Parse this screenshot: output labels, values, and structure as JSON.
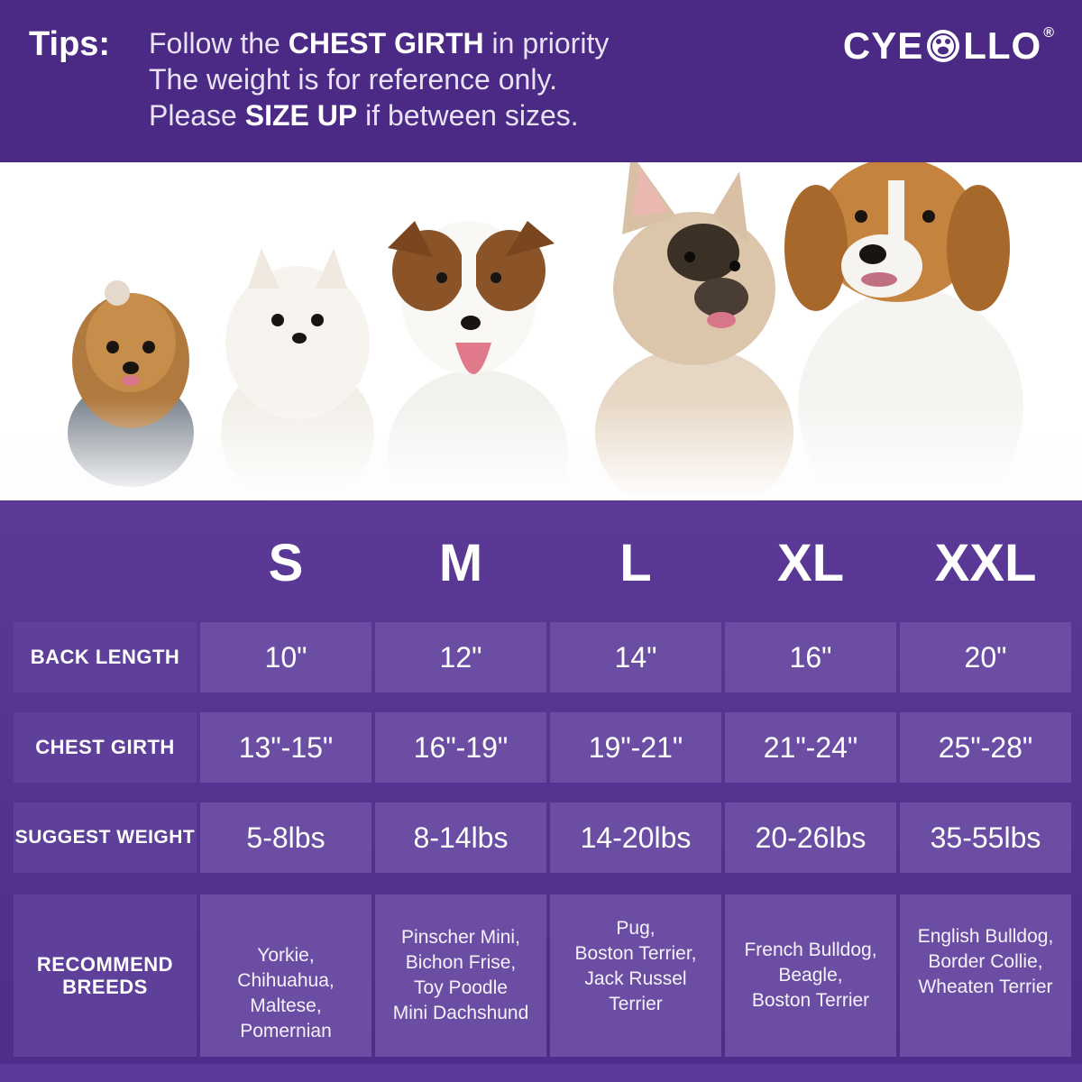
{
  "header": {
    "tips_label": "Tips:",
    "tip1": {
      "pre": "Follow the ",
      "bold": "CHEST GIRTH",
      "post": " in priority"
    },
    "tip2": "The weight is for reference only.",
    "tip3": {
      "pre": "Please ",
      "bold": "SIZE UP",
      "post": " if between sizes."
    },
    "logo": {
      "left": "CYE",
      "right": "LLO",
      "reg": "®"
    }
  },
  "photo": {
    "dogs": [
      "yorkie",
      "pomeranian",
      "jack-russell",
      "french-bulldog",
      "beagle"
    ]
  },
  "table": {
    "sizes": [
      "S",
      "M",
      "L",
      "XL",
      "XXL"
    ],
    "rows": [
      {
        "label": "BACK  LENGTH",
        "values": [
          "10\"",
          "12\"",
          "14\"",
          "16\"",
          "20\""
        ]
      },
      {
        "label": "CHEST GIRTH",
        "values": [
          "13\"-15\"",
          "16\"-19\"",
          "19\"-21\"",
          "21\"-24\"",
          "25\"-28\""
        ]
      },
      {
        "label": "SUGGEST WEIGHT",
        "values": [
          "5-8lbs",
          "8-14lbs",
          "14-20lbs",
          "20-26lbs",
          "35-55lbs"
        ]
      }
    ],
    "breeds": {
      "label": "RECOMMEND\nBREEDS",
      "values": [
        "Yorkie,\nChihuahua,\nMaltese,\nPomernian",
        "Pinscher Mini,\nBichon Frise,\nToy Poodle\nMini Dachshund",
        "Pug,\nBoston Terrier,\nJack Russel\nTerrier",
        "French Bulldog,\nBeagle,\nBoston Terrier",
        "English Bulldog,\nBorder Collie,\nWheaten Terrier"
      ]
    }
  },
  "colors": {
    "purple_dark": "#4b2a85",
    "purple_cell": "#6b4ea3",
    "purple_label": "#5e3f99",
    "text": "#ffffff"
  }
}
